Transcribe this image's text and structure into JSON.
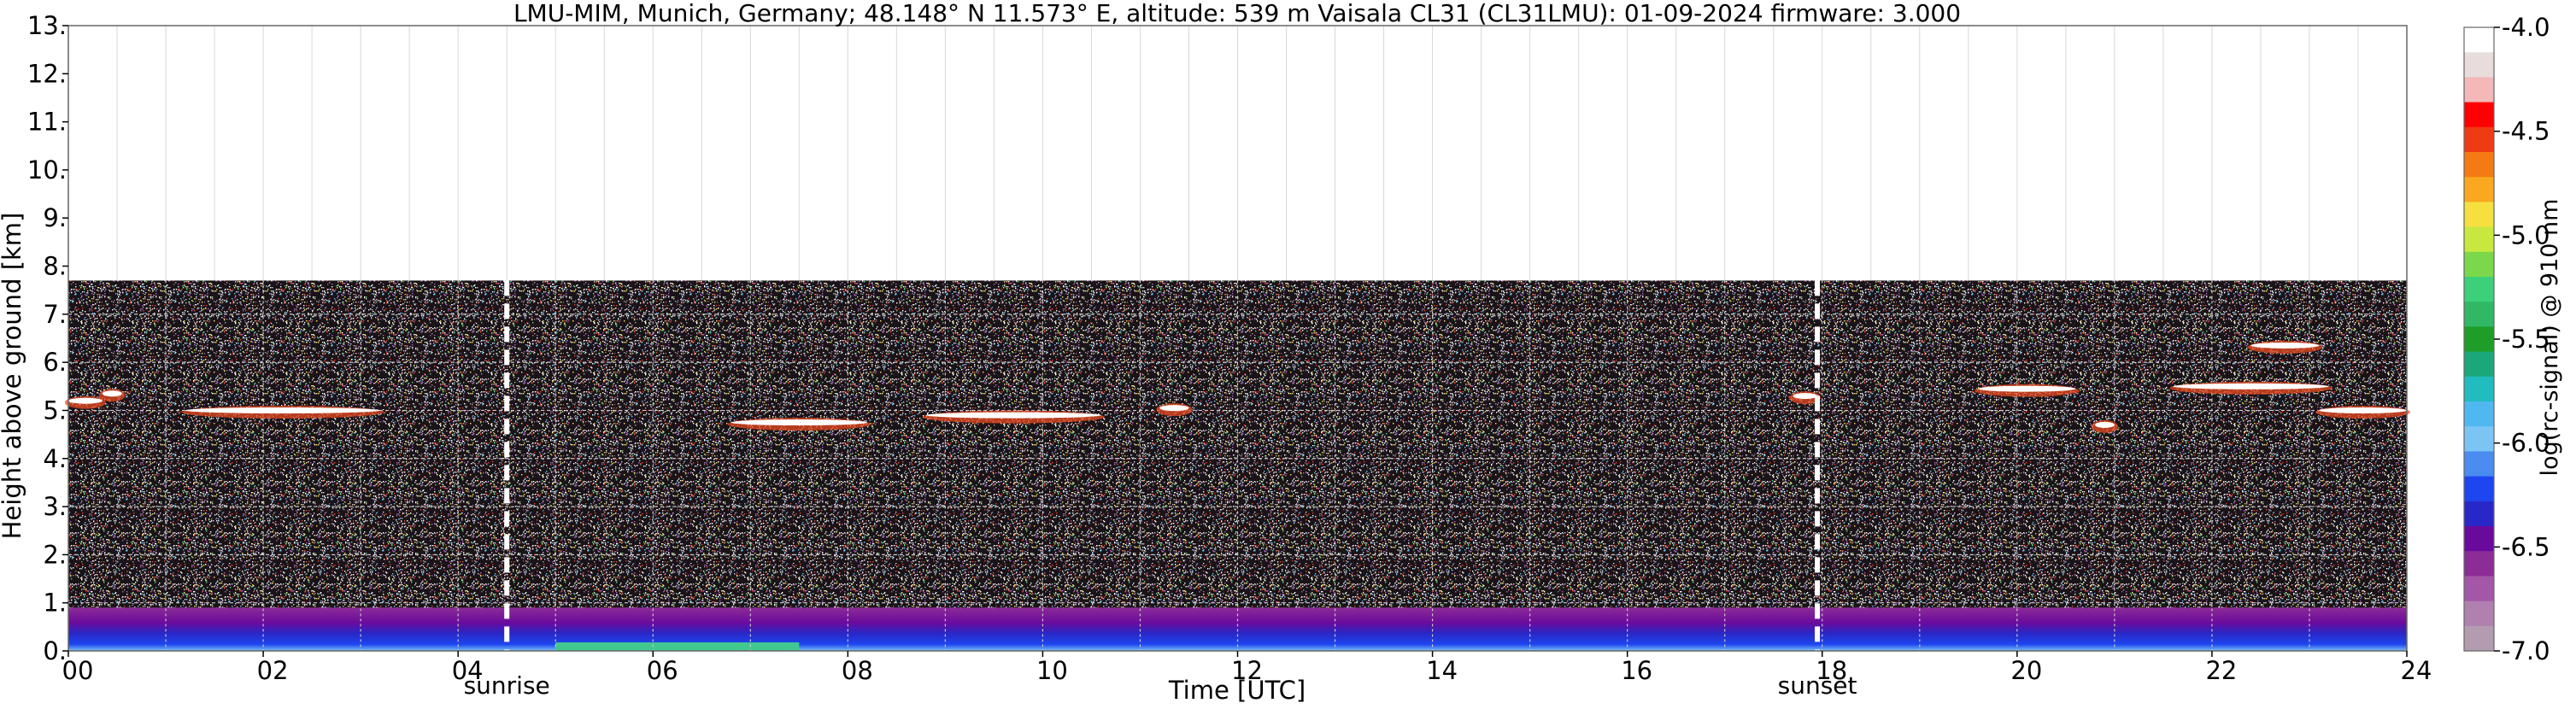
{
  "chart_data": {
    "type": "heatmap",
    "title": "LMU-MIM, Munich, Germany; 48.148° N 11.573° E, altitude: 539 m    Vaisala CL31 (CL31LMU): 01-09-2024    firmware: 3.000",
    "xlabel": "Time [UTC]",
    "ylabel": "Height above ground [km]",
    "xlim": [
      0,
      24
    ],
    "ylim": [
      0,
      13
    ],
    "x_ticks": [
      {
        "value": 0,
        "label": "00"
      },
      {
        "value": 2,
        "label": "02"
      },
      {
        "value": 4,
        "label": "04"
      },
      {
        "value": 6,
        "label": "06"
      },
      {
        "value": 8,
        "label": "08"
      },
      {
        "value": 10,
        "label": "10"
      },
      {
        "value": 12,
        "label": "12"
      },
      {
        "value": 14,
        "label": "14"
      },
      {
        "value": 16,
        "label": "16"
      },
      {
        "value": 18,
        "label": "18"
      },
      {
        "value": 20,
        "label": "20"
      },
      {
        "value": 22,
        "label": "22"
      },
      {
        "value": 24,
        "label": "24"
      }
    ],
    "y_ticks": [
      {
        "value": 0,
        "label": "0."
      },
      {
        "value": 1,
        "label": "1."
      },
      {
        "value": 2,
        "label": "2."
      },
      {
        "value": 3,
        "label": "3."
      },
      {
        "value": 4,
        "label": "4."
      },
      {
        "value": 5,
        "label": "5."
      },
      {
        "value": 6,
        "label": "6."
      },
      {
        "value": 7,
        "label": "7."
      },
      {
        "value": 8,
        "label": "8."
      },
      {
        "value": 9,
        "label": "9."
      },
      {
        "value": 10,
        "label": "10."
      },
      {
        "value": 11,
        "label": "11."
      },
      {
        "value": 12,
        "label": "12."
      },
      {
        "value": 13,
        "label": "13."
      }
    ],
    "grid": true,
    "data_top_km": 7.7,
    "events": [
      {
        "label": "sunrise",
        "time_utc": 4.5
      },
      {
        "label": "sunset",
        "time_utc": 17.95
      }
    ],
    "colorbar": {
      "label": "log(rc-signal) @ 910 nm",
      "range": [
        -7.0,
        -4.0
      ],
      "ticks": [
        "-4.0",
        "-4.5",
        "-5.0",
        "-5.5",
        "-6.0",
        "-6.5",
        "-7.0"
      ],
      "colors": [
        "#ffffff",
        "#e8dcdc",
        "#f4b8b8",
        "#ff0000",
        "#f03a14",
        "#f57a14",
        "#f9a820",
        "#f5e040",
        "#c8e840",
        "#7ad84a",
        "#3cd07a",
        "#30b864",
        "#1e9e28",
        "#1aa87a",
        "#20bcc0",
        "#50b8f0",
        "#7cc4f4",
        "#4a8cf0",
        "#1e46f0",
        "#2828c8",
        "#6a0a9c",
        "#8c2c96",
        "#a456a8",
        "#b080b0",
        "#b49cb0"
      ]
    },
    "cloud_layers": [
      {
        "t0": 0.0,
        "t1": 0.35,
        "h": 5.2
      },
      {
        "t0": 0.35,
        "t1": 0.55,
        "h": 5.35
      },
      {
        "t0": 1.2,
        "t1": 3.2,
        "h": 5.0
      },
      {
        "t0": 6.8,
        "t1": 8.2,
        "h": 4.75
      },
      {
        "t0": 8.8,
        "t1": 10.6,
        "h": 4.9
      },
      {
        "t0": 11.2,
        "t1": 11.5,
        "h": 5.05
      },
      {
        "t0": 17.7,
        "t1": 17.95,
        "h": 5.3
      },
      {
        "t0": 19.6,
        "t1": 20.6,
        "h": 5.45
      },
      {
        "t0": 20.8,
        "t1": 21.0,
        "h": 4.7
      },
      {
        "t0": 21.6,
        "t1": 23.2,
        "h": 5.5
      },
      {
        "t0": 22.4,
        "t1": 23.1,
        "h": 6.35
      },
      {
        "t0": 23.1,
        "t1": 24.0,
        "h": 5.0
      }
    ],
    "boundary_layer_top_km": 0.9
  }
}
